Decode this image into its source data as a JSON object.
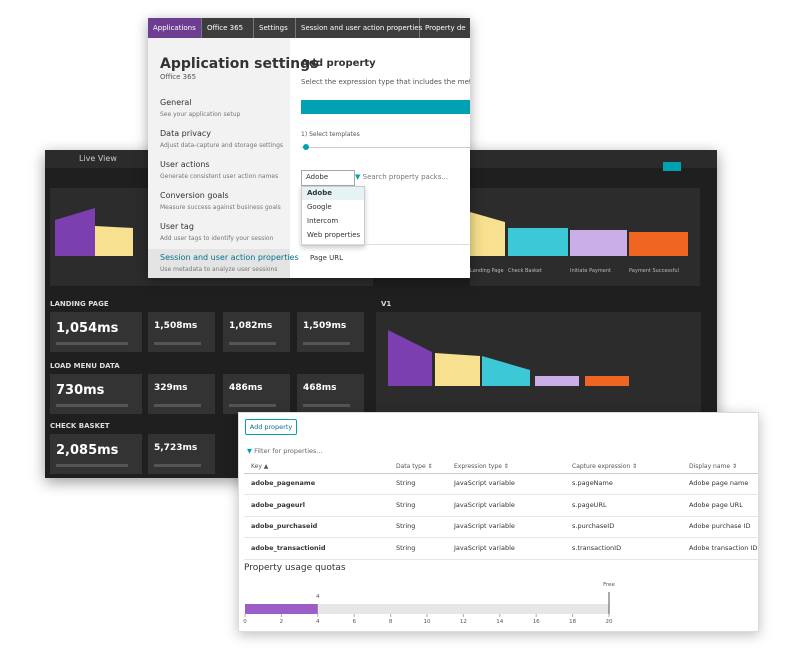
{
  "dashboard": {
    "title": "Live View",
    "sections": [
      {
        "title": "LANDING PAGE",
        "values": [
          "1,054ms",
          "1,508ms",
          "1,082ms",
          "1,509ms"
        ]
      },
      {
        "title": "LOAD MENU DATA",
        "values": [
          "730ms",
          "329ms",
          "486ms",
          "468ms"
        ]
      },
      {
        "title": "CHECK BASKET",
        "values": [
          "2,085ms",
          "5,723ms"
        ]
      }
    ],
    "funnel_label": "V1",
    "funnel_steps": [
      "Landing Page",
      "Check Basket",
      "Initiate Payment",
      "Payment Successful"
    ]
  },
  "settings": {
    "breadcrumb": [
      "Applications",
      "Office 365",
      "Settings",
      "Session and user action properties",
      "Property de"
    ],
    "title": "Application settings",
    "subtitle": "Office 365",
    "nav": [
      {
        "name": "General",
        "desc": "See your application setup"
      },
      {
        "name": "Data privacy",
        "desc": "Adjust data-capture and storage settings"
      },
      {
        "name": "User actions",
        "desc": "Generate consistent user action names"
      },
      {
        "name": "Conversion goals",
        "desc": "Measure success against business goals"
      },
      {
        "name": "User tag",
        "desc": "Add user tags to identify your session"
      },
      {
        "name": "Session and user action properties",
        "desc": "Use metadata to analyze user sessions"
      }
    ],
    "heading": "Add property",
    "instruction": "Select the expression type that includes the metadat",
    "step": "1) Select templates",
    "dropdown": "Adobe",
    "search": "Search property packs...",
    "options": [
      "Adobe",
      "Google",
      "Intercom",
      "Web properties"
    ],
    "field": "Page URL"
  },
  "table": {
    "button": "Add property",
    "filter": "Filter for properties...",
    "columns": [
      "Key",
      "Data type",
      "Expression type",
      "Capture expression",
      "Display name"
    ],
    "rows": [
      [
        "adobe_pagename",
        "String",
        "JavaScript variable",
        "s.pageName",
        "Adobe page name"
      ],
      [
        "adobe_pageurl",
        "String",
        "JavaScript variable",
        "s.pageURL",
        "Adobe page URL"
      ],
      [
        "adobe_purchaseid",
        "String",
        "JavaScript variable",
        "s.purchaseID",
        "Adobe purchase ID"
      ],
      [
        "adobe_transactionid",
        "String",
        "JavaScript variable",
        "s.transactionID",
        "Adobe transaction ID"
      ]
    ]
  },
  "chart_data": {
    "type": "bar",
    "title": "Property usage quotas",
    "values": [
      4
    ],
    "color": "#9a5ec6",
    "xlim": [
      0,
      20
    ],
    "xticks": [
      0,
      2,
      4,
      6,
      8,
      10,
      12,
      14,
      16,
      18,
      20
    ],
    "limit": {
      "value": 20,
      "label": "Free"
    }
  }
}
